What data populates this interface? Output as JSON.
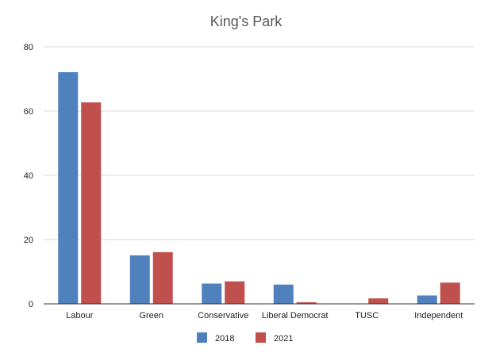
{
  "chart_data": {
    "type": "bar",
    "title": "King's Park",
    "xlabel": "",
    "ylabel": "",
    "categories": [
      "Labour",
      "Green",
      "Conservative",
      "Liberal Democrat",
      "TUSC",
      "Independent"
    ],
    "series": [
      {
        "name": "2018",
        "color": "#4f81bd",
        "values": [
          72.1,
          15.1,
          6.3,
          6.0,
          0,
          2.6
        ]
      },
      {
        "name": "2021",
        "color": "#c0504d",
        "values": [
          62.7,
          16.1,
          7.0,
          0.5,
          1.7,
          6.6
        ]
      }
    ],
    "ylim": [
      0,
      80
    ],
    "yticks": [
      0,
      20,
      40,
      60,
      80
    ],
    "grid": true,
    "legend": "bottom"
  }
}
